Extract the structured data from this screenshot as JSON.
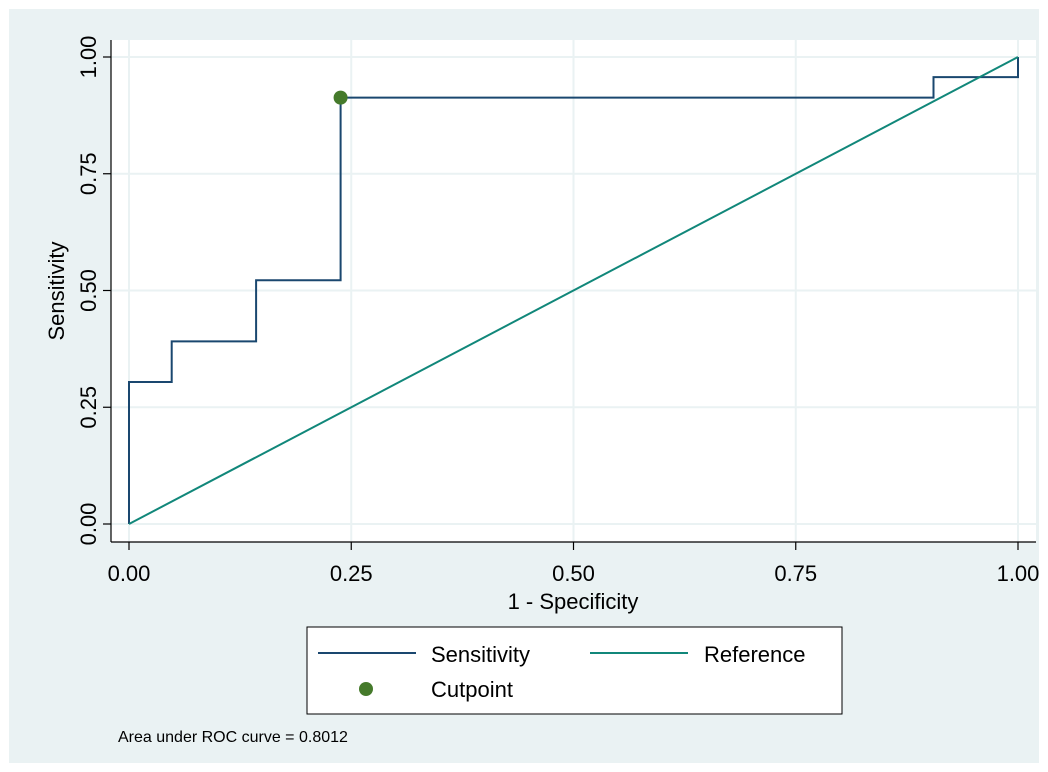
{
  "chart_data": {
    "type": "line",
    "xlabel": "1 - Specificity",
    "ylabel": "Sensitivity",
    "xlim": [
      0,
      1
    ],
    "ylim": [
      0,
      1
    ],
    "x_ticks": [
      "0.00",
      "0.25",
      "0.50",
      "0.75",
      "1.00"
    ],
    "y_ticks": [
      "0.00",
      "0.25",
      "0.50",
      "0.75",
      "1.00"
    ],
    "grid": true,
    "legend_position": "bottom",
    "series": [
      {
        "name": "Sensitivity",
        "kind": "step-line",
        "color": "#1a476f",
        "points": [
          [
            0.0,
            0.0
          ],
          [
            0.0,
            0.304
          ],
          [
            0.048,
            0.304
          ],
          [
            0.048,
            0.391
          ],
          [
            0.143,
            0.391
          ],
          [
            0.143,
            0.522
          ],
          [
            0.238,
            0.522
          ],
          [
            0.238,
            0.913
          ],
          [
            0.905,
            0.913
          ],
          [
            0.905,
            0.957
          ],
          [
            1.0,
            0.957
          ],
          [
            1.0,
            1.0
          ]
        ]
      },
      {
        "name": "Reference",
        "kind": "line",
        "color": "#11877a",
        "points": [
          [
            0,
            0
          ],
          [
            1,
            1
          ]
        ]
      },
      {
        "name": "Cutpoint",
        "kind": "point",
        "color": "#457a2b",
        "points": [
          [
            0.238,
            0.913
          ]
        ]
      }
    ],
    "annotation": "Area under ROC curve = 0.8012"
  },
  "colors": {
    "background": "#eaf2f3",
    "plot_background": "#ffffff",
    "gridline": "#eaf2f3"
  }
}
